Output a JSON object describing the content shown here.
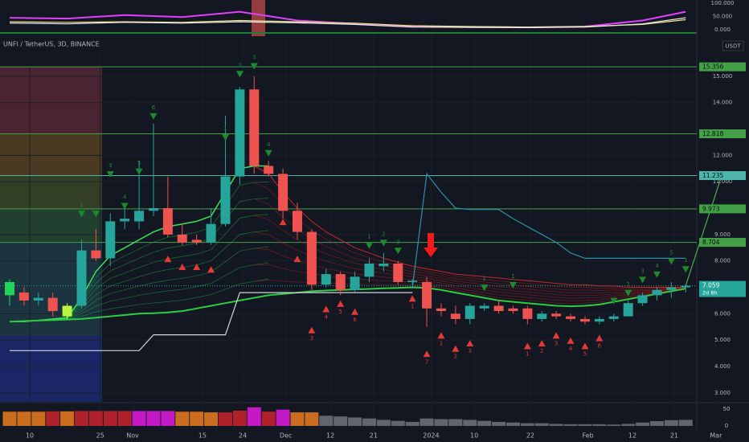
{
  "chart_data": {
    "type": "candlestick",
    "title": "UNFI / TetherUS, 3D, BINANCE",
    "currency": "USDT",
    "xlim": [
      -0.67,
      51.4
    ],
    "ylim": [
      2.66,
      16.61
    ],
    "xticks": [
      {
        "value": 1.4,
        "label": "10"
      },
      {
        "value": 6.3,
        "label": "25"
      },
      {
        "value": 8.55,
        "label": "Nov"
      },
      {
        "value": 13.4,
        "label": "15"
      },
      {
        "value": 16.2,
        "label": "24"
      },
      {
        "value": 19.2,
        "label": "Dec"
      },
      {
        "value": 22.3,
        "label": "12"
      },
      {
        "value": 25.3,
        "label": "21"
      },
      {
        "value": 29.3,
        "label": "2024"
      },
      {
        "value": 32.3,
        "label": "10"
      },
      {
        "value": 36.2,
        "label": "22"
      },
      {
        "value": 40.2,
        "label": "Feb"
      },
      {
        "value": 43.3,
        "label": "12"
      },
      {
        "value": 46.2,
        "label": "21"
      },
      {
        "value": 49.1,
        "label": "Mar"
      }
    ],
    "yticks": [
      {
        "value": 15,
        "label": "15.000"
      },
      {
        "value": 14,
        "label": "14.000"
      },
      {
        "value": 12,
        "label": "12.000"
      },
      {
        "value": 11,
        "label": "11.000"
      },
      {
        "value": 9,
        "label": "9.000"
      },
      {
        "value": 8,
        "label": "8.000"
      },
      {
        "value": 6,
        "label": "6.000"
      },
      {
        "value": 5,
        "label": "5.000"
      },
      {
        "value": 4,
        "label": "4.000"
      },
      {
        "value": 3,
        "label": "3.000"
      }
    ],
    "grid": true,
    "up_color": "#26a69a",
    "down_color": "#ef5350",
    "candles": [
      [
        6.7,
        7.3,
        6.3,
        7.2
      ],
      [
        6.8,
        7.0,
        6.3,
        6.5
      ],
      [
        6.5,
        6.8,
        6.3,
        6.6
      ],
      [
        6.6,
        6.8,
        5.9,
        6.1
      ],
      [
        5.9,
        6.4,
        5.8,
        6.3
      ],
      [
        6.3,
        8.8,
        6.2,
        8.4
      ],
      [
        8.4,
        9.2,
        8.0,
        8.1
      ],
      [
        8.1,
        9.8,
        7.8,
        9.5
      ],
      [
        9.5,
        10.2,
        9.2,
        9.6
      ],
      [
        9.5,
        11.8,
        9.2,
        9.9
      ],
      [
        9.9,
        13.2,
        9.7,
        10.0
      ],
      [
        10.0,
        11.2,
        8.9,
        9.0
      ],
      [
        9.0,
        9.4,
        8.6,
        8.7
      ],
      [
        8.8,
        9.0,
        8.6,
        8.7
      ],
      [
        8.7,
        10.0,
        8.6,
        9.4
      ],
      [
        9.4,
        13.5,
        9.3,
        11.2
      ],
      [
        11.2,
        14.6,
        10.9,
        14.5
      ],
      [
        14.5,
        15.0,
        11.3,
        11.6
      ],
      [
        11.6,
        11.8,
        11.2,
        11.3
      ],
      [
        11.3,
        11.5,
        9.6,
        9.9
      ],
      [
        9.9,
        10.2,
        8.8,
        9.1
      ],
      [
        9.1,
        9.2,
        6.9,
        7.1
      ],
      [
        7.1,
        7.7,
        7.0,
        7.5
      ],
      [
        7.5,
        7.6,
        6.7,
        6.9
      ],
      [
        6.9,
        7.6,
        6.8,
        7.4
      ],
      [
        7.4,
        8.1,
        7.2,
        7.9
      ],
      [
        7.8,
        8.3,
        7.6,
        7.9
      ],
      [
        7.9,
        8.0,
        7.1,
        7.2
      ],
      [
        7.2,
        7.3,
        7.1,
        7.25
      ],
      [
        7.2,
        7.4,
        5.5,
        6.2
      ],
      [
        6.2,
        6.4,
        5.9,
        6.1
      ],
      [
        6.0,
        6.3,
        5.6,
        5.8
      ],
      [
        5.8,
        6.4,
        5.6,
        6.3
      ],
      [
        6.2,
        6.4,
        6.1,
        6.3
      ],
      [
        6.3,
        6.5,
        6.0,
        6.1
      ],
      [
        6.2,
        6.3,
        6.0,
        6.1
      ],
      [
        6.2,
        6.3,
        5.6,
        5.8
      ],
      [
        5.8,
        6.1,
        5.7,
        6.0
      ],
      [
        6.0,
        6.1,
        5.8,
        5.9
      ],
      [
        5.9,
        6.0,
        5.7,
        5.8
      ],
      [
        5.8,
        5.9,
        5.6,
        5.7
      ],
      [
        5.7,
        5.9,
        5.6,
        5.8
      ],
      [
        5.8,
        6.0,
        5.7,
        5.9
      ],
      [
        5.9,
        6.5,
        5.9,
        6.4
      ],
      [
        6.4,
        6.8,
        6.3,
        6.7
      ],
      [
        6.7,
        7.0,
        6.5,
        6.9
      ],
      [
        6.9,
        7.2,
        6.6,
        7.0
      ],
      [
        7.0,
        7.1,
        6.8,
        7.06
      ]
    ],
    "candle_highlights": [
      {
        "index": 0,
        "color": "#22d35a"
      },
      {
        "index": 4,
        "color": "#b9f542"
      }
    ],
    "levels": [
      {
        "value": 15.356,
        "color": "#43a047"
      },
      {
        "value": 12.818,
        "color": "#43a047"
      },
      {
        "value": 11.235,
        "color": "#4db6ac"
      },
      {
        "value": 9.973,
        "color": "#43a047"
      },
      {
        "value": 8.704,
        "color": "#43a047"
      }
    ],
    "last_price": {
      "value": 7.059,
      "countdown": "2d 8h",
      "color": "#26a69a"
    },
    "ribbon_fast": [
      5.7,
      5.7,
      5.75,
      5.8,
      5.85,
      6.6,
      7.6,
      8.2,
      8.5,
      8.8,
      9.1,
      9.3,
      9.4,
      9.5,
      9.7,
      10.6,
      11.5,
      11.6,
      11.6,
      null,
      null,
      null,
      null,
      null,
      null,
      null,
      null,
      null,
      null,
      null,
      null,
      null,
      null,
      null,
      null,
      null,
      null,
      null,
      null,
      null,
      null,
      null,
      null,
      null,
      null,
      null,
      null,
      null
    ],
    "ribbon_slow": [
      5.7,
      5.72,
      5.74,
      5.76,
      5.78,
      5.8,
      5.85,
      5.9,
      5.95,
      6.0,
      6.02,
      6.05,
      6.1,
      6.2,
      6.3,
      6.4,
      6.5,
      6.6,
      6.7,
      6.75,
      6.8,
      6.85,
      6.88,
      6.9,
      6.92,
      6.94,
      6.96,
      6.98,
      7.0,
      6.98,
      6.9,
      6.8,
      6.7,
      6.6,
      6.5,
      6.45,
      6.4,
      6.35,
      6.3,
      6.28,
      6.3,
      6.35,
      6.45,
      6.55,
      6.65,
      6.75,
      6.85,
      6.95
    ],
    "ribbon_red": [
      null,
      null,
      null,
      null,
      null,
      null,
      null,
      null,
      null,
      null,
      null,
      null,
      null,
      null,
      null,
      null,
      null,
      11.6,
      11.3,
      10.6,
      10.0,
      9.5,
      9.1,
      8.8,
      8.5,
      8.3,
      8.1,
      7.95,
      7.8,
      7.7,
      7.6,
      7.5,
      7.45,
      7.4,
      7.35,
      7.3,
      7.25,
      7.2,
      7.15,
      7.1,
      7.1,
      7.05,
      7.05,
      7.0,
      7.0,
      7.0,
      7.0,
      7.0
    ],
    "stop_line": {
      "color": "#d1d4dc",
      "values": [
        4.6,
        4.6,
        4.6,
        4.6,
        4.6,
        4.6,
        4.6,
        4.6,
        4.6,
        4.6,
        5.2,
        5.2,
        5.2,
        5.2,
        5.2,
        5.2,
        6.8,
        6.8,
        6.8,
        6.8,
        6.8,
        6.8,
        6.8,
        6.8,
        6.8,
        6.8,
        6.8,
        6.8,
        6.8,
        null,
        null,
        null,
        null,
        null,
        null,
        null,
        null,
        null,
        null,
        null,
        null,
        null,
        null,
        null,
        null,
        null,
        null,
        null
      ]
    },
    "trail_line": {
      "color": "#2f8fa8",
      "values": [
        null,
        null,
        null,
        null,
        null,
        null,
        null,
        null,
        null,
        null,
        null,
        null,
        null,
        null,
        null,
        null,
        null,
        null,
        null,
        null,
        null,
        null,
        null,
        null,
        null,
        null,
        null,
        null,
        7.0,
        11.3,
        10.6,
        10.0,
        9.95,
        9.95,
        9.95,
        9.6,
        9.3,
        9.0,
        8.7,
        8.3,
        8.1,
        8.1,
        8.1,
        8.1,
        8.1,
        8.1,
        8.1,
        8.1
      ]
    },
    "projection": {
      "color": "#4caf50",
      "x": [
        47,
        49.5
      ],
      "values": [
        7.06,
        11.235
      ]
    },
    "sell_signals": {
      "color": "#1e8a2e",
      "points": [
        {
          "index": 5,
          "price": 9.9,
          "label": "1"
        },
        {
          "index": 6,
          "price": 9.9
        },
        {
          "index": 7,
          "price": 11.4,
          "label": "3"
        },
        {
          "index": 8,
          "price": 10.2,
          "label": "4"
        },
        {
          "index": 9,
          "price": 11.5,
          "label": "5"
        },
        {
          "index": 10,
          "price": 13.6,
          "label": "6"
        },
        {
          "index": 15,
          "price": 12.8,
          "label": "1"
        },
        {
          "index": 16,
          "price": 15.2,
          "label": "2"
        },
        {
          "index": 17,
          "price": 15.5,
          "label": "3"
        },
        {
          "index": 18,
          "price": 12.2,
          "label": "4"
        },
        {
          "index": 25,
          "price": 8.7,
          "label": "1"
        },
        {
          "index": 26,
          "price": 8.8,
          "label": "2"
        },
        {
          "index": 27,
          "price": 8.5,
          "label": "3"
        },
        {
          "index": 33,
          "price": 7.1,
          "label": "1"
        },
        {
          "index": 35,
          "price": 7.2,
          "label": "1"
        },
        {
          "index": 42,
          "price": 6.6
        },
        {
          "index": 43,
          "price": 6.9,
          "label": "2"
        },
        {
          "index": 44,
          "price": 7.4,
          "label": "3"
        },
        {
          "index": 45,
          "price": 7.6,
          "label": "4"
        },
        {
          "index": 46,
          "price": 8.1,
          "label": "5"
        },
        {
          "index": 47,
          "price": 7.8,
          "label": "1"
        }
      ]
    },
    "buy_signals": {
      "color": "#e53935",
      "points": [
        {
          "index": 11,
          "price": 8.2
        },
        {
          "index": 12,
          "price": 7.9
        },
        {
          "index": 13,
          "price": 7.9
        },
        {
          "index": 14,
          "price": 7.8
        },
        {
          "index": 19,
          "price": 9.6
        },
        {
          "index": 20,
          "price": 8.2
        },
        {
          "index": 21,
          "price": 5.5,
          "label": "3"
        },
        {
          "index": 22,
          "price": 6.3,
          "label": "4"
        },
        {
          "index": 23,
          "price": 6.5,
          "label": "5"
        },
        {
          "index": 24,
          "price": 6.2,
          "label": "6"
        },
        {
          "index": 28,
          "price": 6.7,
          "label": "1"
        },
        {
          "index": 29,
          "price": 4.6,
          "label": "7"
        },
        {
          "index": 30,
          "price": 5.3,
          "label": "1"
        },
        {
          "index": 31,
          "price": 4.8,
          "label": "2"
        },
        {
          "index": 32,
          "price": 5.0,
          "label": "3"
        },
        {
          "index": 36,
          "price": 4.9,
          "label": "1"
        },
        {
          "index": 37,
          "price": 5.0,
          "label": "2"
        },
        {
          "index": 38,
          "price": 5.3,
          "label": "3"
        },
        {
          "index": 39,
          "price": 5.1,
          "label": "4"
        },
        {
          "index": 40,
          "price": 4.9,
          "label": "5"
        },
        {
          "index": 41,
          "price": 5.2,
          "label": "6"
        }
      ]
    },
    "volume": {
      "ylim": [
        0,
        64
      ],
      "yticks": [
        0,
        50
      ],
      "values": [
        42,
        42,
        42,
        43,
        43,
        44,
        44,
        44,
        44,
        44,
        44,
        44,
        42,
        42,
        40,
        40,
        45,
        55,
        42,
        48,
        40,
        40,
        30,
        28,
        25,
        22,
        18,
        15,
        12,
        22,
        20,
        20,
        18,
        15,
        12,
        10,
        8,
        8,
        6,
        5,
        5,
        5,
        4,
        6,
        10,
        14,
        17,
        18
      ],
      "colors": [
        "#e0771f",
        "#e0771f",
        "#e0771f",
        "#c2242c",
        "#e0771f",
        "#c2242c",
        "#c2242c",
        "#c2242c",
        "#c2242c",
        "#d81bd8",
        "#d81bd8",
        "#d81bd8",
        "#e0771f",
        "#e0771f",
        "#e0771f",
        "#c2242c",
        "#c2242c",
        "#d81bd8",
        "#c2242c",
        "#d81bd8",
        "#e0771f",
        "#e0771f",
        "#6b6e78",
        "#6b6e78",
        "#6b6e78",
        "#6b6e78",
        "#6b6e78",
        "#6b6e78",
        "#6b6e78",
        "#6b6e78",
        "#6b6e78",
        "#6b6e78",
        "#6b6e78",
        "#6b6e78",
        "#6b6e78",
        "#6b6e78",
        "#6b6e78",
        "#6b6e78",
        "#6b6e78",
        "#6b6e78",
        "#6b6e78",
        "#6b6e78",
        "#6b6e78",
        "#6b6e78",
        "#6b6e78",
        "#6b6e78",
        "#6b6e78",
        "#6b6e78"
      ]
    },
    "indicator": {
      "ylim": [
        0,
        100
      ],
      "yticks": [
        {
          "value": 100,
          "label": "100.000"
        },
        {
          "value": 50,
          "label": "50.000"
        },
        {
          "value": 0,
          "label": "0.000"
        }
      ],
      "x": [
        0,
        4,
        8,
        12,
        16,
        20,
        24,
        28,
        32,
        36,
        40,
        44,
        47
      ],
      "series": [
        {
          "color": "#e040fb",
          "values": [
            45,
            42,
            55,
            48,
            68,
            35,
            22,
            12,
            10,
            9,
            12,
            35,
            68
          ]
        },
        {
          "color": "#f0e68c",
          "values": [
            30,
            28,
            30,
            28,
            35,
            30,
            25,
            15,
            12,
            10,
            12,
            20,
            38
          ]
        },
        {
          "color": "#e8e8e8",
          "values": [
            25,
            22,
            28,
            25,
            30,
            26,
            20,
            10,
            9,
            8,
            10,
            22,
            45
          ]
        }
      ]
    }
  }
}
